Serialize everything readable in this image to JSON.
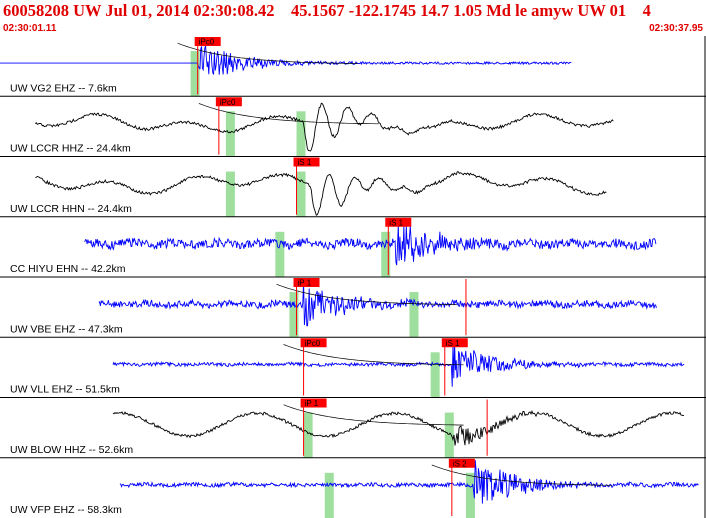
{
  "header": {
    "title": "60058208 UW Jul 01, 2014 02:30:08.42    45.1567 -122.1745 14.7 1.05 Md le amyw UW 01    4",
    "start_time": "02:30:01.11",
    "end_time": "02:30:37.95"
  },
  "colors": {
    "header_text": "#e00000",
    "trace_blue": "#0000ff",
    "trace_black": "#000000",
    "pick_red": "#ff0000",
    "pick_window_green": "#9edf9e",
    "divider": "#000000"
  },
  "traces": [
    {
      "label": "UW VG2 EHZ -- 7.6km",
      "color": "blue",
      "style": "burst",
      "amp": 0.25,
      "burst": 0.55,
      "start": 0.0,
      "end": 0.81,
      "onset": 0.28,
      "picks": [
        {
          "label": "iPc0",
          "t": 0.28
        }
      ],
      "greens": [
        0.27
      ],
      "curve": true
    },
    {
      "label": "UW LCCR HHZ -- 24.4km",
      "color": "black",
      "style": "wave",
      "amp": 0.35,
      "burst": 0.6,
      "start": 0.05,
      "end": 0.87,
      "onset": 0.43,
      "picks": [
        {
          "label": "iPc0",
          "t": 0.31
        }
      ],
      "greens": [
        0.32,
        0.42
      ],
      "curve": true
    },
    {
      "label": "UW LCCR HHN -- 24.4km",
      "color": "black",
      "style": "wave",
      "amp": 0.4,
      "burst": 0.55,
      "start": 0.05,
      "end": 0.86,
      "onset": 0.44,
      "picks": [
        {
          "label": "iS 1",
          "t": 0.42
        }
      ],
      "greens": [
        0.32,
        0.42
      ],
      "curve": false
    },
    {
      "label": "CC HIYU EHN -- 42.2km",
      "color": "blue",
      "style": "noise",
      "amp": 0.32,
      "burst": 0.5,
      "start": 0.12,
      "end": 0.93,
      "onset": 0.56,
      "picks": [
        {
          "label": "iS 1",
          "t": 0.55
        }
      ],
      "greens": [
        0.39,
        0.54
      ],
      "curve": false
    },
    {
      "label": "UW VBE EHZ -- 47.3km",
      "color": "blue",
      "style": "noise",
      "amp": 0.25,
      "burst": 0.45,
      "start": 0.14,
      "end": 0.93,
      "onset": 0.43,
      "picks": [
        {
          "label": "iP 1",
          "t": 0.42
        },
        {
          "label": "",
          "t": 0.66
        }
      ],
      "greens": [
        0.41,
        0.58
      ],
      "curve": true
    },
    {
      "label": "UW VLL EHZ -- 51.5km",
      "color": "blue",
      "style": "noise",
      "amp": 0.12,
      "burst": 0.5,
      "start": 0.16,
      "end": 0.97,
      "onset": 0.64,
      "picks": [
        {
          "label": "iPc0",
          "t": 0.43
        },
        {
          "label": "iS 1",
          "t": 0.63
        }
      ],
      "greens": [
        0.61
      ],
      "curve": true
    },
    {
      "label": "UW BLOW HHZ -- 52.6km",
      "color": "black",
      "style": "slow",
      "amp": 0.38,
      "burst": 0.3,
      "start": 0.16,
      "end": 0.97,
      "onset": 0.64,
      "picks": [
        {
          "label": "iP 1",
          "t": 0.43
        },
        {
          "label": "",
          "t": 0.69
        }
      ],
      "greens": [
        0.43,
        0.63
      ],
      "curve": true
    },
    {
      "label": "UW VFP EHZ -- 58.3km",
      "color": "blue",
      "style": "noise",
      "amp": 0.14,
      "burst": 0.6,
      "start": 0.17,
      "end": 0.99,
      "onset": 0.67,
      "picks": [
        {
          "label": "iS 2",
          "t": 0.64
        }
      ],
      "greens": [
        0.46,
        0.66
      ],
      "curve": true
    }
  ]
}
